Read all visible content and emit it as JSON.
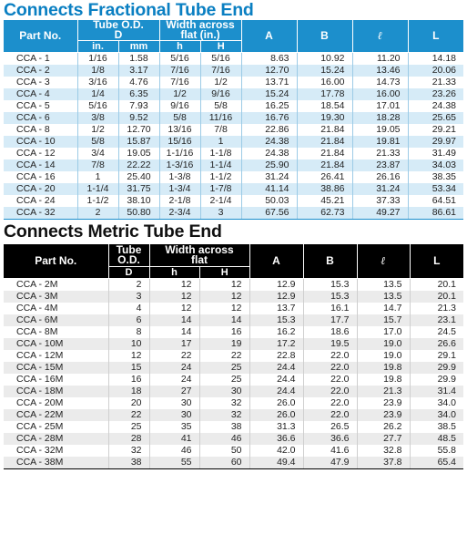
{
  "fractional": {
    "title": "Connects Fractional Tube End",
    "headers": {
      "part_no": "Part No.",
      "tube_od": "Tube O.D.",
      "tube_od_sub": "D",
      "width_across": "Width across",
      "width_across_sub": "flat (in.)",
      "a": "A",
      "b": "B",
      "l_small": "ℓ",
      "l_big": "L",
      "in": "in.",
      "mm": "mm",
      "h": "h",
      "H": "H"
    },
    "rows": [
      [
        "CCA -  1",
        "1/16",
        "1.58",
        "5/16",
        "5/16",
        "8.63",
        "10.92",
        "11.20",
        "14.18"
      ],
      [
        "CCA -  2",
        "1/8",
        "3.17",
        "7/16",
        "7/16",
        "12.70",
        "15.24",
        "13.46",
        "20.06"
      ],
      [
        "CCA -  3",
        "3/16",
        "4.76",
        "7/16",
        "1/2",
        "13.71",
        "16.00",
        "14.73",
        "21.33"
      ],
      [
        "CCA -  4",
        "1/4",
        "6.35",
        "1/2",
        "9/16",
        "15.24",
        "17.78",
        "16.00",
        "23.26"
      ],
      [
        "CCA -  5",
        "5/16",
        "7.93",
        "9/16",
        "5/8",
        "16.25",
        "18.54",
        "17.01",
        "24.38"
      ],
      [
        "CCA -  6",
        "3/8",
        "9.52",
        "5/8",
        "11/16",
        "16.76",
        "19.30",
        "18.28",
        "25.65"
      ],
      [
        "CCA -  8",
        "1/2",
        "12.70",
        "13/16",
        "7/8",
        "22.86",
        "21.84",
        "19.05",
        "29.21"
      ],
      [
        "CCA - 10",
        "5/8",
        "15.87",
        "15/16",
        "1",
        "24.38",
        "21.84",
        "19.81",
        "29.97"
      ],
      [
        "CCA - 12",
        "3/4",
        "19.05",
        "1-1/16",
        "1-1/8",
        "24.38",
        "21.84",
        "21.33",
        "31.49"
      ],
      [
        "CCA - 14",
        "7/8",
        "22.22",
        "1-3/16",
        "1-1/4",
        "25.90",
        "21.84",
        "23.87",
        "34.03"
      ],
      [
        "CCA - 16",
        "1",
        "25.40",
        "1-3/8",
        "1-1/2",
        "31.24",
        "26.41",
        "26.16",
        "38.35"
      ],
      [
        "CCA - 20",
        "1-1/4",
        "31.75",
        "1-3/4",
        "1-7/8",
        "41.14",
        "38.86",
        "31.24",
        "53.34"
      ],
      [
        "CCA - 24",
        "1-1/2",
        "38.10",
        "2-1/8",
        "2-1/4",
        "50.03",
        "45.21",
        "37.33",
        "64.51"
      ],
      [
        "CCA - 32",
        "2",
        "50.80",
        "2-3/4",
        "3",
        "67.56",
        "62.73",
        "49.27",
        "86.61"
      ]
    ]
  },
  "metric": {
    "title": "Connects Metric Tube End",
    "headers": {
      "part_no": "Part No.",
      "tube": "Tube",
      "od": "O.D.",
      "d": "D",
      "width_across": "Width across",
      "flat": "flat",
      "a": "A",
      "b": "B",
      "l_small": "ℓ",
      "l_big": "L",
      "h": "h",
      "H": "H"
    },
    "rows": [
      [
        "CCA -  2M",
        "2",
        "12",
        "12",
        "12.9",
        "15.3",
        "13.5",
        "20.1"
      ],
      [
        "CCA -  3M",
        "3",
        "12",
        "12",
        "12.9",
        "15.3",
        "13.5",
        "20.1"
      ],
      [
        "CCA -  4M",
        "4",
        "12",
        "12",
        "13.7",
        "16.1",
        "14.7",
        "21.3"
      ],
      [
        "CCA -  6M",
        "6",
        "14",
        "14",
        "15.3",
        "17.7",
        "15.7",
        "23.1"
      ],
      [
        "CCA -  8M",
        "8",
        "14",
        "16",
        "16.2",
        "18.6",
        "17.0",
        "24.5"
      ],
      [
        "CCA - 10M",
        "10",
        "17",
        "19",
        "17.2",
        "19.5",
        "19.0",
        "26.6"
      ],
      [
        "CCA - 12M",
        "12",
        "22",
        "22",
        "22.8",
        "22.0",
        "19.0",
        "29.1"
      ],
      [
        "CCA - 15M",
        "15",
        "24",
        "25",
        "24.4",
        "22.0",
        "19.8",
        "29.9"
      ],
      [
        "CCA - 16M",
        "16",
        "24",
        "25",
        "24.4",
        "22.0",
        "19.8",
        "29.9"
      ],
      [
        "CCA - 18M",
        "18",
        "27",
        "30",
        "24.4",
        "22.0",
        "21.3",
        "31.4"
      ],
      [
        "CCA - 20M",
        "20",
        "30",
        "32",
        "26.0",
        "22.0",
        "23.9",
        "34.0"
      ],
      [
        "CCA - 22M",
        "22",
        "30",
        "32",
        "26.0",
        "22.0",
        "23.9",
        "34.0"
      ],
      [
        "CCA - 25M",
        "25",
        "35",
        "38",
        "31.3",
        "26.5",
        "26.2",
        "38.5"
      ],
      [
        "CCA - 28M",
        "28",
        "41",
        "46",
        "36.6",
        "36.6",
        "27.7",
        "48.5"
      ],
      [
        "CCA - 32M",
        "32",
        "46",
        "50",
        "42.0",
        "41.6",
        "32.8",
        "55.8"
      ],
      [
        "CCA - 38M",
        "38",
        "55",
        "60",
        "49.4",
        "47.9",
        "37.8",
        "65.4"
      ]
    ]
  }
}
